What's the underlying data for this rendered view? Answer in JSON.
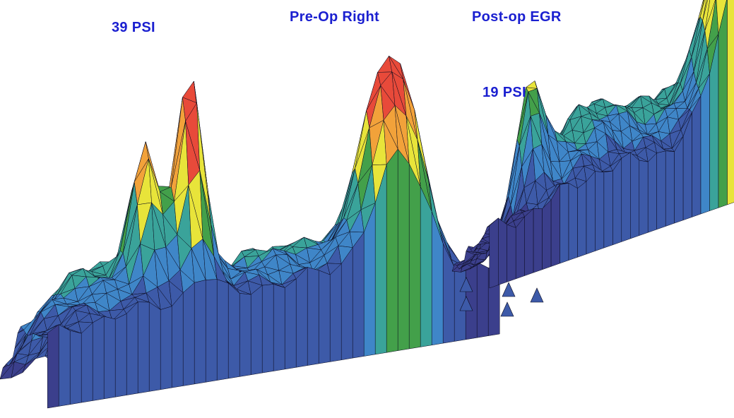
{
  "chart_data": [
    {
      "type": "surface3d",
      "title": "Pre-Op Right",
      "annotation": "39 PSI",
      "peak_value": 39,
      "unit": "PSI",
      "color_scale": [
        "#3b3f8c",
        "#3d5aa8",
        "#3f86c8",
        "#3aa39a",
        "#43a04a",
        "#e8e43a",
        "#f2a23a",
        "#e84a3a"
      ]
    },
    {
      "type": "surface3d",
      "title": "Post-op EGR",
      "annotation": "19 PSI",
      "peak_value": 19,
      "unit": "PSI",
      "color_scale": [
        "#3b3f8c",
        "#3d5aa8",
        "#3f86c8",
        "#3aa39a",
        "#43a04a",
        "#e8e43a",
        "#f2a23a",
        "#e84a3a"
      ]
    }
  ],
  "colors": {
    "label_text": "#1a1fd0",
    "mesh_line": "#0b0b1e",
    "background": "#ffffff"
  }
}
